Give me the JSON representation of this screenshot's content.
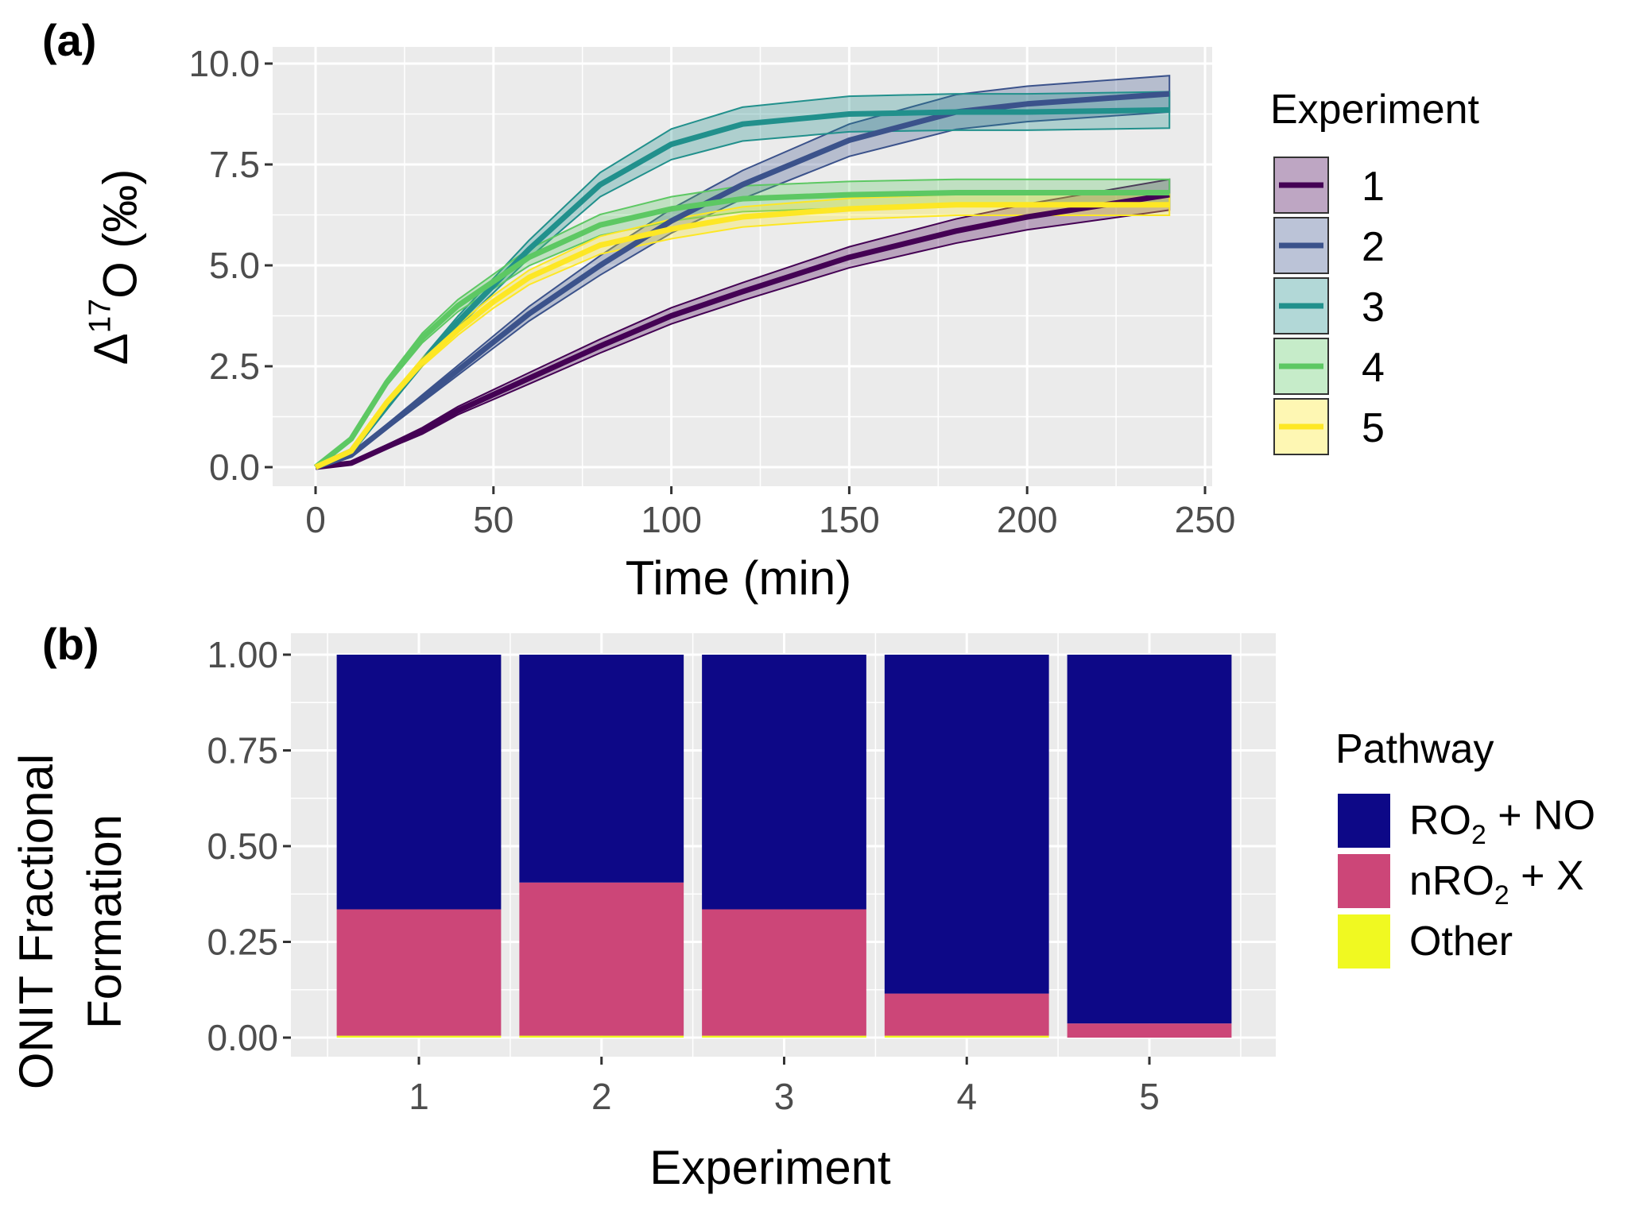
{
  "chart_data": [
    {
      "panel_label": "(a)",
      "type": "line",
      "xlabel": "Time (min)",
      "ylabel": {
        "pre": "Δ",
        "sup": "17",
        "post": "O (‰)"
      },
      "xlim": [
        0,
        250
      ],
      "ylim": [
        0,
        10
      ],
      "xticks": [
        0,
        50,
        100,
        150,
        200,
        250
      ],
      "xtick_labels": [
        "0",
        "50",
        "100",
        "150",
        "200",
        "250"
      ],
      "yticks": [
        0,
        2.5,
        5,
        7.5,
        10
      ],
      "ytick_labels": [
        "0.0",
        "2.5",
        "5.0",
        "7.5",
        "10.0"
      ],
      "grid": true,
      "legend": {
        "title": "Experiment",
        "placement": "right"
      },
      "x": [
        0,
        10,
        20,
        30,
        40,
        50,
        60,
        80,
        100,
        120,
        150,
        180,
        200,
        240
      ],
      "series": [
        {
          "name": "1",
          "color": "#440154",
          "values": [
            0,
            0.1,
            0.5,
            0.9,
            1.4,
            1.8,
            2.2,
            3.0,
            3.75,
            4.35,
            5.2,
            5.85,
            6.2,
            6.75
          ],
          "band": [
            0,
            0.02,
            0.05,
            0.08,
            0.1,
            0.12,
            0.14,
            0.17,
            0.2,
            0.22,
            0.26,
            0.3,
            0.32,
            0.38
          ]
        },
        {
          "name": "2",
          "color": "#3B528B",
          "values": [
            0,
            0.3,
            1.0,
            1.7,
            2.4,
            3.1,
            3.8,
            5.0,
            6.1,
            7.0,
            8.1,
            8.8,
            9.0,
            9.25
          ],
          "band": [
            0,
            0.03,
            0.06,
            0.09,
            0.12,
            0.15,
            0.18,
            0.24,
            0.3,
            0.35,
            0.4,
            0.43,
            0.44,
            0.45
          ]
        },
        {
          "name": "3",
          "color": "#21908C",
          "values": [
            0,
            0.4,
            1.5,
            2.6,
            3.6,
            4.5,
            5.4,
            7.0,
            8.0,
            8.5,
            8.75,
            8.8,
            8.8,
            8.85
          ],
          "band": [
            0,
            0.03,
            0.06,
            0.1,
            0.14,
            0.18,
            0.22,
            0.3,
            0.38,
            0.42,
            0.44,
            0.45,
            0.45,
            0.45
          ]
        },
        {
          "name": "4",
          "color": "#5DC863",
          "values": [
            0,
            0.7,
            2.1,
            3.2,
            4.0,
            4.6,
            5.2,
            6.0,
            6.4,
            6.65,
            6.75,
            6.8,
            6.8,
            6.8
          ],
          "band": [
            0,
            0.04,
            0.08,
            0.12,
            0.15,
            0.18,
            0.21,
            0.26,
            0.3,
            0.32,
            0.33,
            0.33,
            0.33,
            0.33
          ]
        },
        {
          "name": "5",
          "color": "#FDE725",
          "values": [
            0,
            0.4,
            1.6,
            2.6,
            3.4,
            4.1,
            4.7,
            5.5,
            5.9,
            6.2,
            6.4,
            6.5,
            6.5,
            6.5
          ],
          "band": [
            0,
            0.03,
            0.06,
            0.1,
            0.13,
            0.16,
            0.18,
            0.22,
            0.24,
            0.25,
            0.26,
            0.26,
            0.26,
            0.26
          ]
        }
      ]
    },
    {
      "panel_label": "(b)",
      "type": "bar",
      "stacked": true,
      "xlabel": "Experiment",
      "ylabel": [
        "ONIT Fractional",
        "Formation"
      ],
      "categories": [
        "1",
        "2",
        "3",
        "4",
        "5"
      ],
      "ylim": [
        0,
        1
      ],
      "yticks": [
        0,
        0.25,
        0.5,
        0.75,
        1.0
      ],
      "ytick_labels": [
        "0.00",
        "0.25",
        "0.50",
        "0.75",
        "1.00"
      ],
      "grid": true,
      "legend": {
        "title": "Pathway",
        "placement": "right"
      },
      "series": [
        {
          "name": {
            "pre": "RO",
            "sub": "2",
            "post": " + NO"
          },
          "color": "#0D0887",
          "values": [
            0.665,
            0.595,
            0.665,
            0.885,
            0.963
          ]
        },
        {
          "name": {
            "pre": "nRO",
            "sub": "2",
            "post": " + X"
          },
          "color": "#CC4678",
          "values": [
            0.33,
            0.4,
            0.33,
            0.11,
            0.037
          ]
        },
        {
          "name": {
            "pre": "Other",
            "sub": "",
            "post": ""
          },
          "color": "#F0F921",
          "values": [
            0.005,
            0.005,
            0.005,
            0.005,
            0.0
          ]
        }
      ]
    }
  ]
}
